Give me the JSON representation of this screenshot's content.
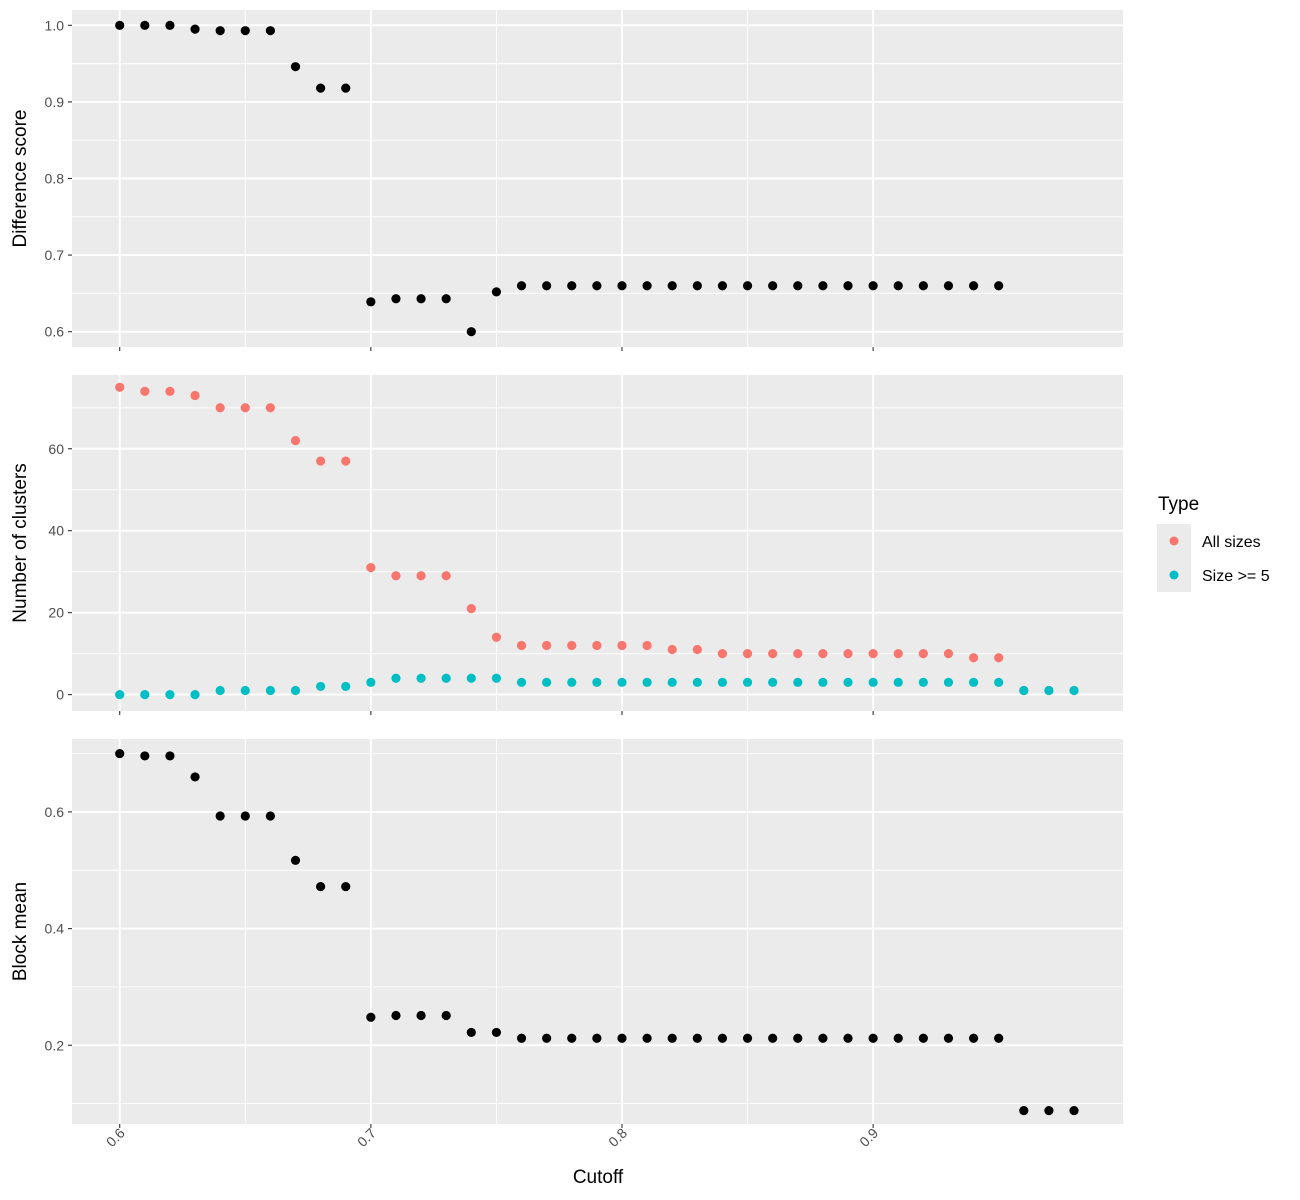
{
  "chart_data": {
    "type": "scatter",
    "xlabel": "Cutoff",
    "xlim": [
      0.581,
      0.9995
    ],
    "xticks": [
      0.6,
      0.7,
      0.8,
      0.9
    ],
    "xtick_labels": [
      "0.6",
      "0.7",
      "0.8",
      "0.9"
    ],
    "grid": true,
    "legend": {
      "title": "Type",
      "position": "right",
      "entries": [
        {
          "label": "All sizes",
          "color": "#F8766D"
        },
        {
          "label": "Size >= 5",
          "color": "#00BFC4"
        }
      ]
    },
    "panels": [
      {
        "ylabel": "Difference score",
        "ylim": [
          0.58,
          1.02
        ],
        "yticks": [
          0.6,
          0.7,
          0.8,
          0.9,
          1.0
        ],
        "ytick_labels": [
          "0.6",
          "0.7",
          "0.8",
          "0.9",
          "1.0"
        ],
        "series": [
          {
            "color": "#000000",
            "x": [
              0.6,
              0.61,
              0.62,
              0.63,
              0.64,
              0.65,
              0.66,
              0.67,
              0.68,
              0.69,
              0.7,
              0.71,
              0.72,
              0.73,
              0.74,
              0.75,
              0.76,
              0.77,
              0.78,
              0.79,
              0.8,
              0.81,
              0.82,
              0.83,
              0.84,
              0.85,
              0.86,
              0.87,
              0.88,
              0.89,
              0.9,
              0.91,
              0.92,
              0.93,
              0.94,
              0.95
            ],
            "y": [
              1.0,
              1.0,
              1.0,
              0.995,
              0.993,
              0.993,
              0.993,
              0.946,
              0.918,
              0.918,
              0.639,
              0.643,
              0.643,
              0.643,
              0.6,
              0.652,
              0.66,
              0.66,
              0.66,
              0.66,
              0.66,
              0.66,
              0.66,
              0.66,
              0.66,
              0.66,
              0.66,
              0.66,
              0.66,
              0.66,
              0.66,
              0.66,
              0.66,
              0.66,
              0.66,
              0.66
            ]
          }
        ]
      },
      {
        "ylabel": "Number of clusters",
        "ylim": [
          -4,
          78
        ],
        "yticks": [
          0,
          20,
          40,
          60
        ],
        "ytick_labels": [
          "0",
          "20",
          "40",
          "60"
        ],
        "series": [
          {
            "name": "All sizes",
            "color": "#F8766D",
            "x": [
              0.6,
              0.61,
              0.62,
              0.63,
              0.64,
              0.65,
              0.66,
              0.67,
              0.68,
              0.69,
              0.7,
              0.71,
              0.72,
              0.73,
              0.74,
              0.75,
              0.76,
              0.77,
              0.78,
              0.79,
              0.8,
              0.81,
              0.82,
              0.83,
              0.84,
              0.85,
              0.86,
              0.87,
              0.88,
              0.89,
              0.9,
              0.91,
              0.92,
              0.93,
              0.94,
              0.95,
              0.96,
              0.97,
              0.98
            ],
            "y": [
              75,
              74,
              74,
              73,
              70,
              70,
              70,
              62,
              57,
              57,
              31,
              29,
              29,
              29,
              21,
              14,
              12,
              12,
              12,
              12,
              12,
              12,
              11,
              11,
              10,
              10,
              10,
              10,
              10,
              10,
              10,
              10,
              10,
              10,
              9,
              9,
              1,
              1,
              1
            ]
          },
          {
            "name": "Size >= 5",
            "color": "#00BFC4",
            "x": [
              0.6,
              0.61,
              0.62,
              0.63,
              0.64,
              0.65,
              0.66,
              0.67,
              0.68,
              0.69,
              0.7,
              0.71,
              0.72,
              0.73,
              0.74,
              0.75,
              0.76,
              0.77,
              0.78,
              0.79,
              0.8,
              0.81,
              0.82,
              0.83,
              0.84,
              0.85,
              0.86,
              0.87,
              0.88,
              0.89,
              0.9,
              0.91,
              0.92,
              0.93,
              0.94,
              0.95,
              0.96,
              0.97,
              0.98
            ],
            "y": [
              0,
              0,
              0,
              0,
              1,
              1,
              1,
              1,
              2,
              2,
              3,
              4,
              4,
              4,
              4,
              4,
              3,
              3,
              3,
              3,
              3,
              3,
              3,
              3,
              3,
              3,
              3,
              3,
              3,
              3,
              3,
              3,
              3,
              3,
              3,
              3,
              1,
              1,
              1
            ]
          }
        ]
      },
      {
        "ylabel": "Block mean",
        "ylim": [
          0.065,
          0.725
        ],
        "yticks": [
          0.2,
          0.4,
          0.6
        ],
        "ytick_labels": [
          "0.2",
          "0.4",
          "0.6"
        ],
        "series": [
          {
            "color": "#000000",
            "x": [
              0.6,
              0.61,
              0.62,
              0.63,
              0.64,
              0.65,
              0.66,
              0.67,
              0.68,
              0.69,
              0.7,
              0.71,
              0.72,
              0.73,
              0.74,
              0.75,
              0.76,
              0.77,
              0.78,
              0.79,
              0.8,
              0.81,
              0.82,
              0.83,
              0.84,
              0.85,
              0.86,
              0.87,
              0.88,
              0.89,
              0.9,
              0.91,
              0.92,
              0.93,
              0.94,
              0.95,
              0.96,
              0.97,
              0.98
            ],
            "y": [
              0.7,
              0.696,
              0.696,
              0.66,
              0.593,
              0.593,
              0.593,
              0.517,
              0.472,
              0.472,
              0.248,
              0.251,
              0.251,
              0.251,
              0.222,
              0.222,
              0.212,
              0.212,
              0.212,
              0.212,
              0.212,
              0.212,
              0.212,
              0.212,
              0.212,
              0.212,
              0.212,
              0.212,
              0.212,
              0.212,
              0.212,
              0.212,
              0.212,
              0.212,
              0.212,
              0.212,
              0.088,
              0.088,
              0.088
            ]
          }
        ]
      }
    ]
  }
}
